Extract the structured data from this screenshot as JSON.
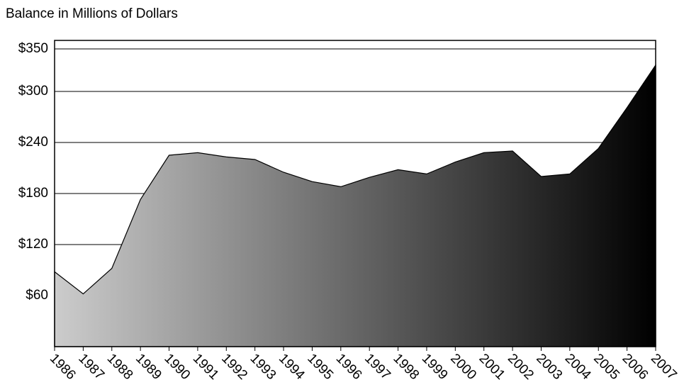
{
  "chart_data": {
    "type": "area",
    "title": "Balance in Millions of Dollars",
    "categories": [
      "1986",
      "1987",
      "1988",
      "1989",
      "1990",
      "1991",
      "1992",
      "1993",
      "1994",
      "1995",
      "1996",
      "1997",
      "1998",
      "1999",
      "2000",
      "2001",
      "2002",
      "2003",
      "2004",
      "2005",
      "2006",
      "2007"
    ],
    "values": [
      88,
      62,
      92,
      173,
      225,
      228,
      223,
      220,
      205,
      194,
      188,
      199,
      208,
      203,
      217,
      228,
      230,
      200,
      203,
      233,
      281,
      331
    ],
    "color": [
      "#cccccc",
      "#000000"
    ],
    "ylim": [
      0,
      360
    ],
    "yticks": [
      {
        "value": 60,
        "label": "$60"
      },
      {
        "value": 120,
        "label": "$120"
      },
      {
        "value": 180,
        "label": "$180"
      },
      {
        "value": 240,
        "label": "$240"
      },
      {
        "value": 300,
        "label": "$300"
      },
      {
        "value": 350,
        "label": "$350"
      }
    ],
    "grid": true
  }
}
